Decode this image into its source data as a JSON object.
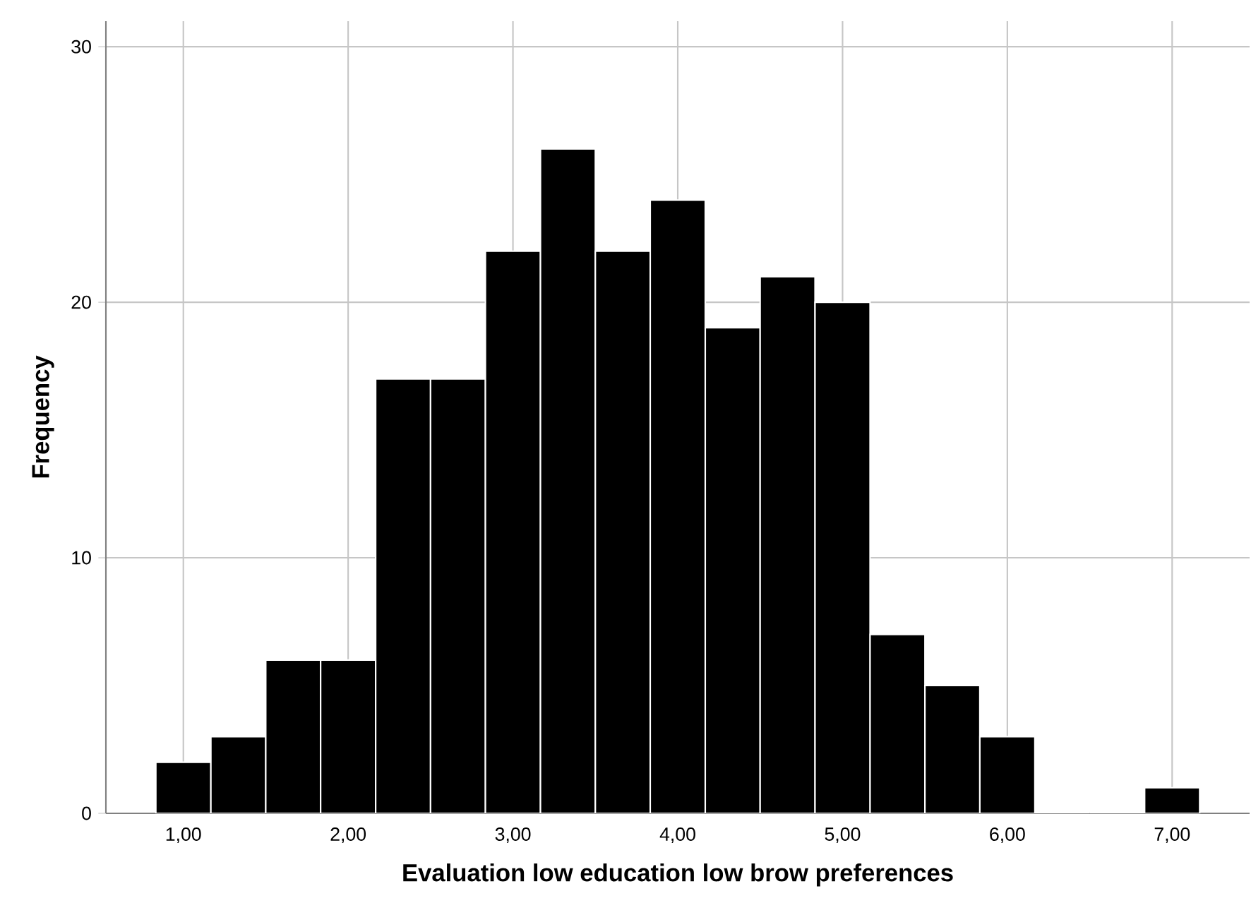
{
  "chart_data": {
    "type": "histogram",
    "xlabel": "Evaluation low education low brow preferences",
    "ylabel": "Frequency",
    "bins": [
      0.833,
      1.167,
      1.5,
      1.833,
      2.167,
      2.5,
      2.833,
      3.167,
      3.5,
      3.833,
      4.167,
      4.5,
      4.833,
      5.167,
      5.5,
      5.833,
      6.167,
      6.5,
      6.833,
      7.167
    ],
    "values": [
      2,
      3,
      6,
      6,
      17,
      17,
      22,
      26,
      22,
      24,
      19,
      21,
      20,
      7,
      5,
      3,
      0,
      0,
      1
    ],
    "color": "#000000",
    "xlim": [
      0.53,
      7.47
    ],
    "xticks": [
      {
        "value": 1,
        "label": "1,00"
      },
      {
        "value": 2,
        "label": "2,00"
      },
      {
        "value": 3,
        "label": "3,00"
      },
      {
        "value": 4,
        "label": "4,00"
      },
      {
        "value": 5,
        "label": "5,00"
      },
      {
        "value": 6,
        "label": "6,00"
      },
      {
        "value": 7,
        "label": "7,00"
      }
    ],
    "ylim": [
      0,
      31
    ],
    "yticks": [
      0,
      10,
      20,
      30
    ],
    "grid": true
  }
}
